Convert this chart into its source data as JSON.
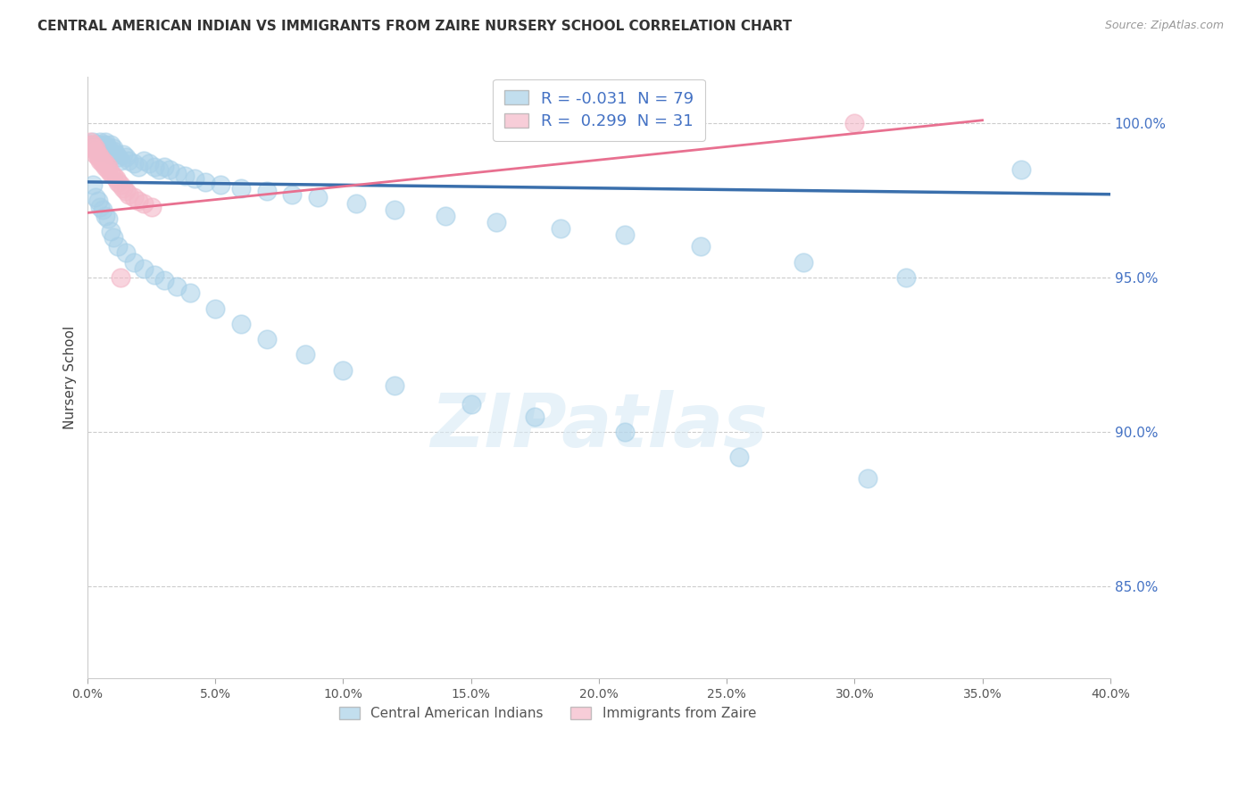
{
  "title": "CENTRAL AMERICAN INDIAN VS IMMIGRANTS FROM ZAIRE NURSERY SCHOOL CORRELATION CHART",
  "source": "Source: ZipAtlas.com",
  "ylabel": "Nursery School",
  "legend_blue_r": "-0.031",
  "legend_blue_n": "79",
  "legend_pink_r": "0.299",
  "legend_pink_n": "31",
  "blue_color": "#a8d0e8",
  "pink_color": "#f4b8c8",
  "blue_line_color": "#3a6fac",
  "pink_line_color": "#e87090",
  "watermark_text": "ZIPatlas",
  "legend_label_blue": "Central American Indians",
  "legend_label_pink": "Immigrants from Zaire",
  "xlim": [
    0.0,
    0.4
  ],
  "ylim": [
    0.82,
    1.015
  ],
  "ytick_vals": [
    1.0,
    0.95,
    0.9,
    0.85
  ],
  "xtick_vals": [
    0.0,
    0.05,
    0.1,
    0.15,
    0.2,
    0.25,
    0.3,
    0.35,
    0.4
  ],
  "blue_trend_x": [
    0.0,
    0.4
  ],
  "blue_trend_y": [
    0.981,
    0.977
  ],
  "pink_trend_x": [
    0.0,
    0.35
  ],
  "pink_trend_y": [
    0.971,
    1.001
  ],
  "blue_x": [
    0.001,
    0.002,
    0.003,
    0.003,
    0.004,
    0.004,
    0.005,
    0.005,
    0.006,
    0.006,
    0.007,
    0.007,
    0.008,
    0.008,
    0.009,
    0.009,
    0.01,
    0.01,
    0.011,
    0.012,
    0.013,
    0.014,
    0.015,
    0.016,
    0.018,
    0.02,
    0.022,
    0.024,
    0.026,
    0.028,
    0.03,
    0.032,
    0.035,
    0.038,
    0.042,
    0.046,
    0.052,
    0.06,
    0.07,
    0.08,
    0.09,
    0.105,
    0.12,
    0.14,
    0.16,
    0.185,
    0.21,
    0.24,
    0.28,
    0.32,
    0.365,
    0.002,
    0.003,
    0.004,
    0.005,
    0.006,
    0.007,
    0.008,
    0.009,
    0.01,
    0.012,
    0.015,
    0.018,
    0.022,
    0.026,
    0.03,
    0.035,
    0.04,
    0.05,
    0.06,
    0.07,
    0.085,
    0.1,
    0.12,
    0.15,
    0.175,
    0.21,
    0.255,
    0.305
  ],
  "blue_y": [
    0.993,
    0.994,
    0.993,
    0.992,
    0.993,
    0.991,
    0.994,
    0.992,
    0.993,
    0.991,
    0.994,
    0.993,
    0.992,
    0.991,
    0.993,
    0.99,
    0.992,
    0.991,
    0.99,
    0.989,
    0.988,
    0.99,
    0.989,
    0.988,
    0.987,
    0.986,
    0.988,
    0.987,
    0.986,
    0.985,
    0.986,
    0.985,
    0.984,
    0.983,
    0.982,
    0.981,
    0.98,
    0.979,
    0.978,
    0.977,
    0.976,
    0.974,
    0.972,
    0.97,
    0.968,
    0.966,
    0.964,
    0.96,
    0.955,
    0.95,
    0.985,
    0.98,
    0.976,
    0.975,
    0.973,
    0.972,
    0.97,
    0.969,
    0.965,
    0.963,
    0.96,
    0.958,
    0.955,
    0.953,
    0.951,
    0.949,
    0.947,
    0.945,
    0.94,
    0.935,
    0.93,
    0.925,
    0.92,
    0.915,
    0.909,
    0.905,
    0.9,
    0.892,
    0.885
  ],
  "pink_x": [
    0.001,
    0.001,
    0.002,
    0.002,
    0.003,
    0.003,
    0.003,
    0.004,
    0.004,
    0.005,
    0.005,
    0.006,
    0.006,
    0.007,
    0.007,
    0.008,
    0.008,
    0.009,
    0.01,
    0.011,
    0.012,
    0.013,
    0.014,
    0.015,
    0.016,
    0.018,
    0.02,
    0.022,
    0.025,
    0.3,
    0.013
  ],
  "pink_y": [
    0.993,
    0.994,
    0.993,
    0.992,
    0.992,
    0.991,
    0.99,
    0.99,
    0.989,
    0.989,
    0.988,
    0.988,
    0.987,
    0.987,
    0.986,
    0.986,
    0.985,
    0.984,
    0.983,
    0.982,
    0.981,
    0.98,
    0.979,
    0.978,
    0.977,
    0.976,
    0.975,
    0.974,
    0.973,
    1.0,
    0.95
  ]
}
